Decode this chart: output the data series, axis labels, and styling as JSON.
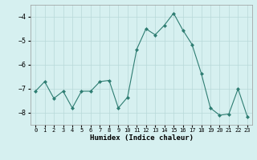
{
  "x": [
    0,
    1,
    2,
    3,
    4,
    5,
    6,
    7,
    8,
    9,
    10,
    11,
    12,
    13,
    14,
    15,
    16,
    17,
    18,
    19,
    20,
    21,
    22,
    23
  ],
  "y": [
    -7.1,
    -6.7,
    -7.4,
    -7.1,
    -7.8,
    -7.1,
    -7.1,
    -6.7,
    -6.65,
    -7.8,
    -7.35,
    -5.35,
    -4.5,
    -4.75,
    -4.35,
    -3.85,
    -4.55,
    -5.15,
    -6.35,
    -7.8,
    -8.1,
    -8.05,
    -7.0,
    -8.15
  ],
  "line_color": "#2e7d72",
  "marker": "D",
  "marker_size": 2.0,
  "bg_color": "#d6f0f0",
  "grid_color": "#b8d8d8",
  "xlabel": "Humidex (Indice chaleur)",
  "ylim": [
    -8.5,
    -3.5
  ],
  "xlim": [
    -0.5,
    23.5
  ],
  "yticks": [
    -8,
    -7,
    -6,
    -5,
    -4
  ],
  "xtick_labels": [
    "0",
    "1",
    "2",
    "3",
    "4",
    "5",
    "6",
    "7",
    "8",
    "9",
    "10",
    "11",
    "12",
    "13",
    "14",
    "15",
    "16",
    "17",
    "18",
    "19",
    "20",
    "21",
    "22",
    "23"
  ]
}
